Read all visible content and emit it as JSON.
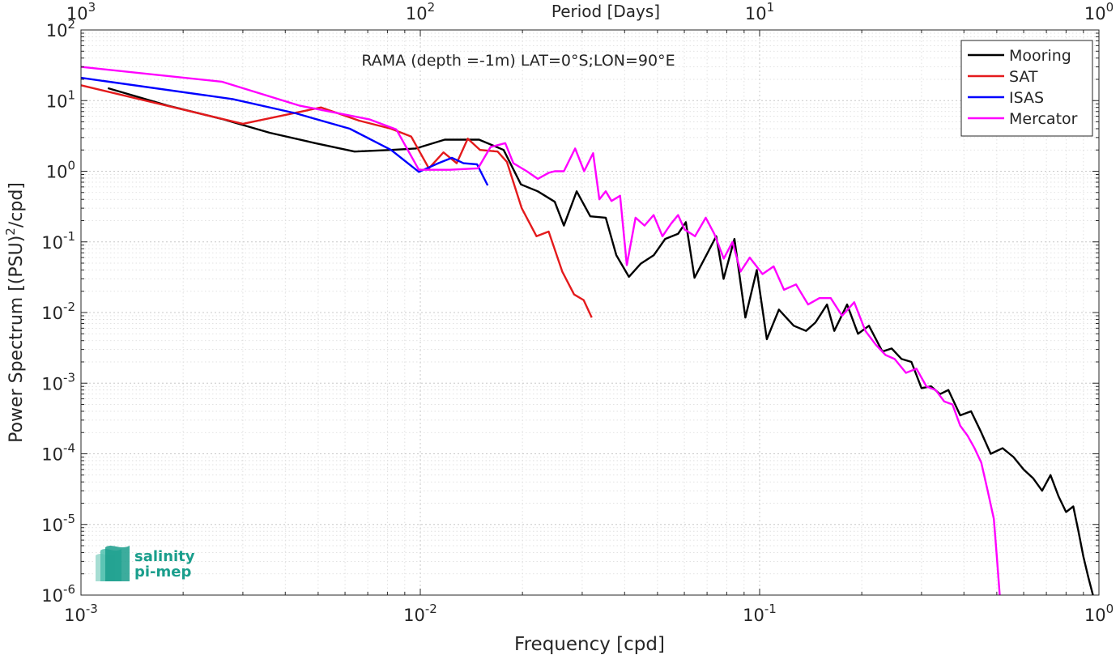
{
  "chart_data": {
    "type": "line",
    "title": "RAMA (depth =-1m) LAT=0°S;LON=90°E",
    "xlabel": "Frequency [cpd]",
    "ylabel": "Power Spectrum [(PSU)",
    "ylabel_sup": "2",
    "ylabel_tail": "/cpd]",
    "top_xlabel": "Period [Days]",
    "x_scale": "log",
    "y_scale": "log",
    "xlim": [
      0.001,
      1
    ],
    "ylim": [
      1e-06,
      100
    ],
    "grid": true,
    "legend_position": "top-right",
    "x_ticks": [
      {
        "value": 0.001,
        "base": "10",
        "exp": "-3"
      },
      {
        "value": 0.01,
        "base": "10",
        "exp": "-2"
      },
      {
        "value": 0.1,
        "base": "10",
        "exp": "-1"
      },
      {
        "value": 1,
        "base": "10",
        "exp": "0"
      }
    ],
    "top_ticks": [
      {
        "value": 0.001,
        "base": "10",
        "exp": "3"
      },
      {
        "value": 0.01,
        "base": "10",
        "exp": "2"
      },
      {
        "value": 0.1,
        "base": "10",
        "exp": "1"
      },
      {
        "value": 1,
        "base": "10",
        "exp": "0"
      }
    ],
    "y_ticks": [
      {
        "value": 100,
        "base": "10",
        "exp": "2"
      },
      {
        "value": 10,
        "base": "10",
        "exp": "1"
      },
      {
        "value": 1,
        "base": "10",
        "exp": "0"
      },
      {
        "value": 0.1,
        "base": "10",
        "exp": "-1"
      },
      {
        "value": 0.01,
        "base": "10",
        "exp": "-2"
      },
      {
        "value": 0.001,
        "base": "10",
        "exp": "-3"
      },
      {
        "value": 0.0001,
        "base": "10",
        "exp": "-4"
      },
      {
        "value": 1e-05,
        "base": "10",
        "exp": "-5"
      },
      {
        "value": 1e-06,
        "base": "10",
        "exp": "-6"
      }
    ],
    "series": [
      {
        "name": "Mooring",
        "color": "#000000",
        "points": [
          [
            0.0012,
            15
          ],
          [
            0.0018,
            8.5
          ],
          [
            0.0026,
            5.5
          ],
          [
            0.0036,
            3.5
          ],
          [
            0.0049,
            2.5
          ],
          [
            0.0064,
            1.9
          ],
          [
            0.0082,
            2.0
          ],
          [
            0.0097,
            2.1
          ],
          [
            0.0118,
            2.8
          ],
          [
            0.0149,
            2.8
          ],
          [
            0.0176,
            2.0
          ],
          [
            0.0198,
            0.65
          ],
          [
            0.0222,
            0.52
          ],
          [
            0.0249,
            0.37
          ],
          [
            0.0265,
            0.17
          ],
          [
            0.0289,
            0.52
          ],
          [
            0.0317,
            0.23
          ],
          [
            0.0352,
            0.22
          ],
          [
            0.0378,
            0.065
          ],
          [
            0.0412,
            0.032
          ],
          [
            0.0446,
            0.049
          ],
          [
            0.0488,
            0.065
          ],
          [
            0.0527,
            0.11
          ],
          [
            0.0575,
            0.13
          ],
          [
            0.0606,
            0.19
          ],
          [
            0.0643,
            0.031
          ],
          [
            0.0697,
            0.065
          ],
          [
            0.0745,
            0.12
          ],
          [
            0.0783,
            0.03
          ],
          [
            0.0843,
            0.11
          ],
          [
            0.0908,
            0.0085
          ],
          [
            0.0981,
            0.04
          ],
          [
            0.105,
            0.0042
          ],
          [
            0.114,
            0.011
          ],
          [
            0.126,
            0.0065
          ],
          [
            0.137,
            0.0055
          ],
          [
            0.146,
            0.0072
          ],
          [
            0.158,
            0.013
          ],
          [
            0.166,
            0.0055
          ],
          [
            0.181,
            0.013
          ],
          [
            0.195,
            0.005
          ],
          [
            0.21,
            0.0065
          ],
          [
            0.23,
            0.0028
          ],
          [
            0.245,
            0.0031
          ],
          [
            0.262,
            0.0022
          ],
          [
            0.28,
            0.002
          ],
          [
            0.3,
            0.00085
          ],
          [
            0.32,
            0.0009
          ],
          [
            0.34,
            0.0007
          ],
          [
            0.36,
            0.0008
          ],
          [
            0.39,
            0.00035
          ],
          [
            0.42,
            0.0004
          ],
          [
            0.45,
            0.0002
          ],
          [
            0.48,
            0.0001
          ],
          [
            0.52,
            0.00012
          ],
          [
            0.56,
            9e-05
          ],
          [
            0.6,
            6e-05
          ],
          [
            0.64,
            4.5e-05
          ],
          [
            0.68,
            3e-05
          ],
          [
            0.72,
            5e-05
          ],
          [
            0.76,
            2.5e-05
          ],
          [
            0.8,
            1.5e-05
          ],
          [
            0.84,
            1.8e-05
          ],
          [
            0.87,
            8e-06
          ],
          [
            0.9,
            3.5e-06
          ],
          [
            0.93,
            1.8e-06
          ],
          [
            0.96,
            1e-06
          ]
        ]
      },
      {
        "name": "SAT",
        "color": "#e41a1c",
        "points": [
          [
            0.001,
            16.5
          ],
          [
            0.003,
            4.7
          ],
          [
            0.0051,
            8.0
          ],
          [
            0.0066,
            5.2
          ],
          [
            0.0082,
            4.0
          ],
          [
            0.0094,
            3.1
          ],
          [
            0.0106,
            1.1
          ],
          [
            0.0117,
            1.85
          ],
          [
            0.0128,
            1.3
          ],
          [
            0.0138,
            2.9
          ],
          [
            0.015,
            2.0
          ],
          [
            0.0169,
            1.9
          ],
          [
            0.018,
            1.35
          ],
          [
            0.0199,
            0.3
          ],
          [
            0.022,
            0.12
          ],
          [
            0.0239,
            0.14
          ],
          [
            0.0262,
            0.038
          ],
          [
            0.0284,
            0.018
          ],
          [
            0.0303,
            0.015
          ],
          [
            0.032,
            0.0085
          ]
        ]
      },
      {
        "name": "ISAS",
        "color": "#0000ff",
        "points": [
          [
            0.001,
            21
          ],
          [
            0.0028,
            10.5
          ],
          [
            0.0043,
            6.6
          ],
          [
            0.0062,
            4.0
          ],
          [
            0.0082,
            2.0
          ],
          [
            0.0099,
            0.98
          ],
          [
            0.0113,
            1.3
          ],
          [
            0.0124,
            1.55
          ],
          [
            0.0134,
            1.3
          ],
          [
            0.0147,
            1.25
          ],
          [
            0.0158,
            0.63
          ]
        ]
      },
      {
        "name": "Mercator",
        "color": "#ff00ff",
        "points": [
          [
            0.001,
            30
          ],
          [
            0.0026,
            18.5
          ],
          [
            0.0044,
            8.5
          ],
          [
            0.0071,
            5.4
          ],
          [
            0.0085,
            3.9
          ],
          [
            0.0099,
            1.05
          ],
          [
            0.0122,
            1.05
          ],
          [
            0.0148,
            1.1
          ],
          [
            0.0161,
            2.2
          ],
          [
            0.0178,
            2.5
          ],
          [
            0.0188,
            1.3
          ],
          [
            0.0206,
            1.0
          ],
          [
            0.0222,
            0.78
          ],
          [
            0.0239,
            0.95
          ],
          [
            0.0249,
            1.0
          ],
          [
            0.0265,
            1.0
          ],
          [
            0.0286,
            2.1
          ],
          [
            0.0304,
            1.0
          ],
          [
            0.0323,
            1.8
          ],
          [
            0.0337,
            0.4
          ],
          [
            0.0352,
            0.52
          ],
          [
            0.0366,
            0.38
          ],
          [
            0.0388,
            0.45
          ],
          [
            0.0406,
            0.047
          ],
          [
            0.0431,
            0.22
          ],
          [
            0.0458,
            0.17
          ],
          [
            0.0487,
            0.24
          ],
          [
            0.0517,
            0.12
          ],
          [
            0.0548,
            0.18
          ],
          [
            0.0575,
            0.24
          ],
          [
            0.0601,
            0.15
          ],
          [
            0.0645,
            0.12
          ],
          [
            0.0694,
            0.22
          ],
          [
            0.0735,
            0.13
          ],
          [
            0.0784,
            0.058
          ],
          [
            0.0832,
            0.1
          ],
          [
            0.0879,
            0.038
          ],
          [
            0.0935,
            0.06
          ],
          [
            0.102,
            0.035
          ],
          [
            0.11,
            0.045
          ],
          [
            0.118,
            0.021
          ],
          [
            0.128,
            0.025
          ],
          [
            0.139,
            0.013
          ],
          [
            0.15,
            0.016
          ],
          [
            0.162,
            0.016
          ],
          [
            0.175,
            0.009
          ],
          [
            0.19,
            0.014
          ],
          [
            0.205,
            0.0055
          ],
          [
            0.22,
            0.0035
          ],
          [
            0.235,
            0.0025
          ],
          [
            0.25,
            0.0022
          ],
          [
            0.27,
            0.0014
          ],
          [
            0.29,
            0.0016
          ],
          [
            0.31,
            0.0009
          ],
          [
            0.33,
            0.0008
          ],
          [
            0.35,
            0.00055
          ],
          [
            0.37,
            0.0005
          ],
          [
            0.39,
            0.00025
          ],
          [
            0.41,
            0.00018
          ],
          [
            0.43,
            0.00012
          ],
          [
            0.45,
            7.5e-05
          ],
          [
            0.47,
            3e-05
          ],
          [
            0.49,
            1.2e-05
          ],
          [
            0.5,
            3.5e-06
          ],
          [
            0.51,
            1e-06
          ]
        ]
      }
    ]
  },
  "logo": {
    "line1": "salinity",
    "line2": "pi-mep",
    "color": "#1a9e8c"
  }
}
